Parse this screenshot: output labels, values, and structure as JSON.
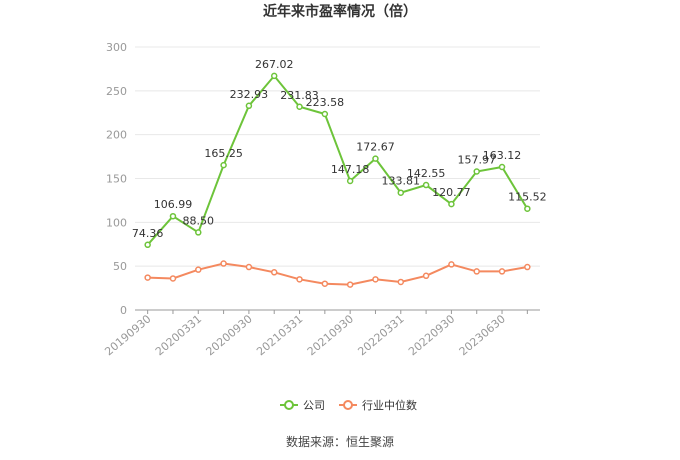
{
  "chart_data": {
    "type": "line",
    "title": "近年来市盈率情况（倍）",
    "categories": [
      "20190930",
      null,
      "20200331",
      null,
      "20200930",
      null,
      "20210331",
      null,
      "20210930",
      null,
      "20220331",
      null,
      "20220930",
      null,
      "20230630",
      null
    ],
    "series": [
      {
        "name": "公司",
        "color": "#6dc43a",
        "values": [
          74.36,
          106.99,
          88.5,
          165.25,
          232.93,
          267.02,
          231.83,
          223.58,
          147.18,
          172.67,
          133.81,
          142.55,
          120.77,
          157.97,
          163.12,
          115.52
        ],
        "value_labels": [
          "74.36",
          "106.99",
          "88.50",
          "165.25",
          "232.93",
          "267.02",
          "231.83",
          "223.58",
          "147.18",
          "172.67",
          "133.81",
          "142.55",
          "120.77",
          "157.97",
          "163.12",
          "115.52"
        ]
      },
      {
        "name": "行业中位数",
        "color": "#f4895f",
        "values": [
          37,
          36,
          46,
          53,
          49,
          43,
          35,
          30,
          29,
          35,
          32,
          39,
          52,
          44,
          44,
          49
        ]
      }
    ],
    "ylim": [
      0,
      300
    ],
    "yticks": [
      0,
      50,
      100,
      150,
      200,
      250,
      300
    ],
    "grid": true,
    "source": "数据来源：恒生聚源"
  }
}
